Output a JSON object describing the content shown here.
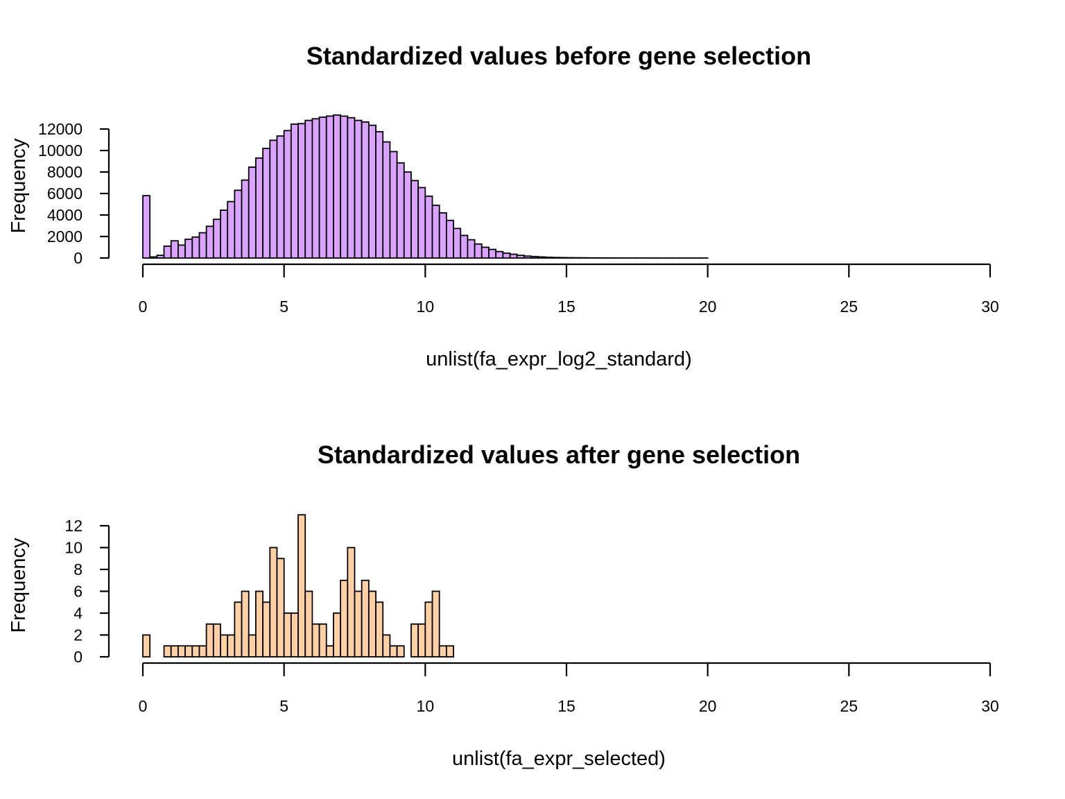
{
  "chart_data": [
    {
      "type": "bar",
      "title": "Standardized values before gene selection",
      "xlabel": "unlist(fa_expr_log2_standard)",
      "ylabel": "Frequency",
      "bar_color": "#D9A3FF",
      "bin_width": 0.25,
      "xlim": [
        0,
        30
      ],
      "ylim": [
        0,
        12000
      ],
      "xticks": [
        0,
        5,
        10,
        15,
        20,
        25,
        30
      ],
      "yticks": [
        0,
        2000,
        4000,
        6000,
        8000,
        10000,
        12000
      ],
      "x_start": 0,
      "values": [
        5800,
        100,
        250,
        1100,
        1600,
        1200,
        1750,
        1950,
        2350,
        2950,
        3600,
        4450,
        5250,
        6300,
        7250,
        8450,
        9300,
        10200,
        10950,
        11350,
        11850,
        12450,
        12500,
        12800,
        12950,
        13100,
        13200,
        13300,
        13200,
        13050,
        12800,
        12650,
        12350,
        11750,
        10800,
        9900,
        8850,
        8000,
        7200,
        6550,
        5750,
        4900,
        4200,
        3500,
        2750,
        2100,
        1700,
        1300,
        1000,
        800,
        600,
        450,
        350,
        250,
        180,
        140,
        100,
        70,
        50,
        40,
        30,
        25,
        20,
        15,
        12,
        10,
        8,
        6,
        5,
        4,
        3,
        3,
        2,
        2,
        2,
        1,
        1,
        1,
        1,
        1,
        0,
        0,
        0,
        0,
        0,
        0,
        0,
        0,
        0,
        0,
        0,
        0,
        0,
        0,
        0,
        0,
        0,
        0,
        0,
        0,
        0,
        0,
        0,
        0,
        0,
        0,
        0,
        0,
        0,
        0,
        0,
        0,
        0,
        0,
        0,
        0,
        0,
        0
      ]
    },
    {
      "type": "bar",
      "title": "Standardized values after gene selection",
      "xlabel": "unlist(fa_expr_selected)",
      "ylabel": "Frequency",
      "bar_color": "#FFD0A3",
      "bin_width": 0.25,
      "xlim": [
        0,
        30
      ],
      "ylim": [
        0,
        12
      ],
      "xticks": [
        0,
        5,
        10,
        15,
        20,
        25,
        30
      ],
      "yticks": [
        0,
        2,
        4,
        6,
        8,
        10,
        12
      ],
      "x_start": 0,
      "values": [
        2,
        0,
        0,
        1,
        1,
        1,
        1,
        1,
        1,
        3,
        3,
        2,
        2,
        5,
        6,
        2,
        6,
        5,
        10,
        9,
        4,
        4,
        13,
        6,
        3,
        3,
        1,
        4,
        7,
        10,
        6,
        7,
        6,
        5,
        2,
        1,
        1,
        0,
        3,
        3,
        5,
        6,
        1,
        1,
        0,
        0,
        0,
        0,
        0,
        0,
        0,
        0,
        0,
        0,
        0,
        0,
        0,
        0,
        0,
        0,
        0,
        0,
        0,
        0,
        0,
        0,
        0,
        0,
        0,
        0,
        0,
        0,
        0,
        0,
        0,
        0,
        0,
        0,
        0,
        0,
        0,
        0,
        0,
        0,
        0,
        0,
        0,
        0,
        0,
        0,
        0,
        0,
        0,
        0,
        0,
        0,
        0,
        0,
        0,
        0,
        0,
        0,
        0,
        0,
        0,
        0,
        0,
        0,
        0,
        0,
        0,
        0,
        0,
        0,
        0,
        0,
        0,
        0
      ]
    }
  ]
}
